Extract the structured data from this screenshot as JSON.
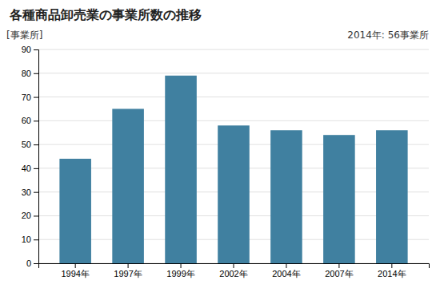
{
  "chart_data": {
    "type": "bar",
    "title": "各種商品卸売業の事業所数の推移",
    "ylabel": "[事業所]",
    "annotation": "2014年: 56事業所",
    "categories": [
      "1994年",
      "1997年",
      "1999年",
      "2002年",
      "2004年",
      "2007年",
      "2014年"
    ],
    "values": [
      44,
      65,
      79,
      58,
      56,
      54,
      56
    ],
    "color": "#4080a0",
    "ylim": [
      0,
      90
    ],
    "yticks": [
      0,
      10,
      20,
      30,
      40,
      50,
      60,
      70,
      80,
      90
    ],
    "grid": true
  }
}
